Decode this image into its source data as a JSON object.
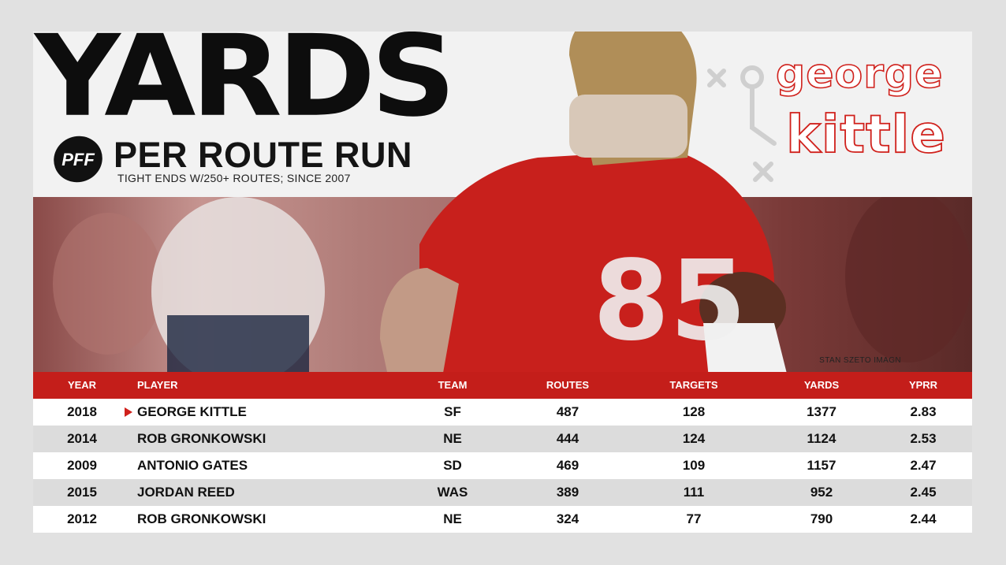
{
  "title": "YARDS",
  "subtitle": "PER ROUTE RUN",
  "note": "TIGHT ENDS W/250+ ROUTES; SINCE 2007",
  "logo": "PFF",
  "name_line1": "george",
  "name_line2": "kittle",
  "photo_credit": "STAN SZETO IMAGN",
  "colors": {
    "accent": "#c41e1a",
    "row_alt": "#dcdcdc",
    "text": "#111111"
  },
  "table": {
    "headers": {
      "year": "YEAR",
      "player": "PLAYER",
      "team": "TEAM",
      "routes": "ROUTES",
      "targets": "TARGETS",
      "yards": "YARDS",
      "ypr": "YPRR"
    },
    "rows": [
      {
        "year": "2018",
        "player": "GEORGE KITTLE",
        "team": "SF",
        "routes": "487",
        "targets": "128",
        "yards": "1377",
        "ypr": "2.83"
      },
      {
        "year": "2014",
        "player": "ROB GRONKOWSKI",
        "team": "NE",
        "routes": "444",
        "targets": "124",
        "yards": "1124",
        "ypr": "2.53"
      },
      {
        "year": "2009",
        "player": "ANTONIO GATES",
        "team": "SD",
        "routes": "469",
        "targets": "109",
        "yards": "1157",
        "ypr": "2.47"
      },
      {
        "year": "2015",
        "player": "JORDAN REED",
        "team": "WAS",
        "routes": "389",
        "targets": "111",
        "yards": "952",
        "ypr": "2.45"
      },
      {
        "year": "2012",
        "player": "ROB GRONKOWSKI",
        "team": "NE",
        "routes": "324",
        "targets": "77",
        "yards": "790",
        "ypr": "2.44"
      }
    ]
  }
}
